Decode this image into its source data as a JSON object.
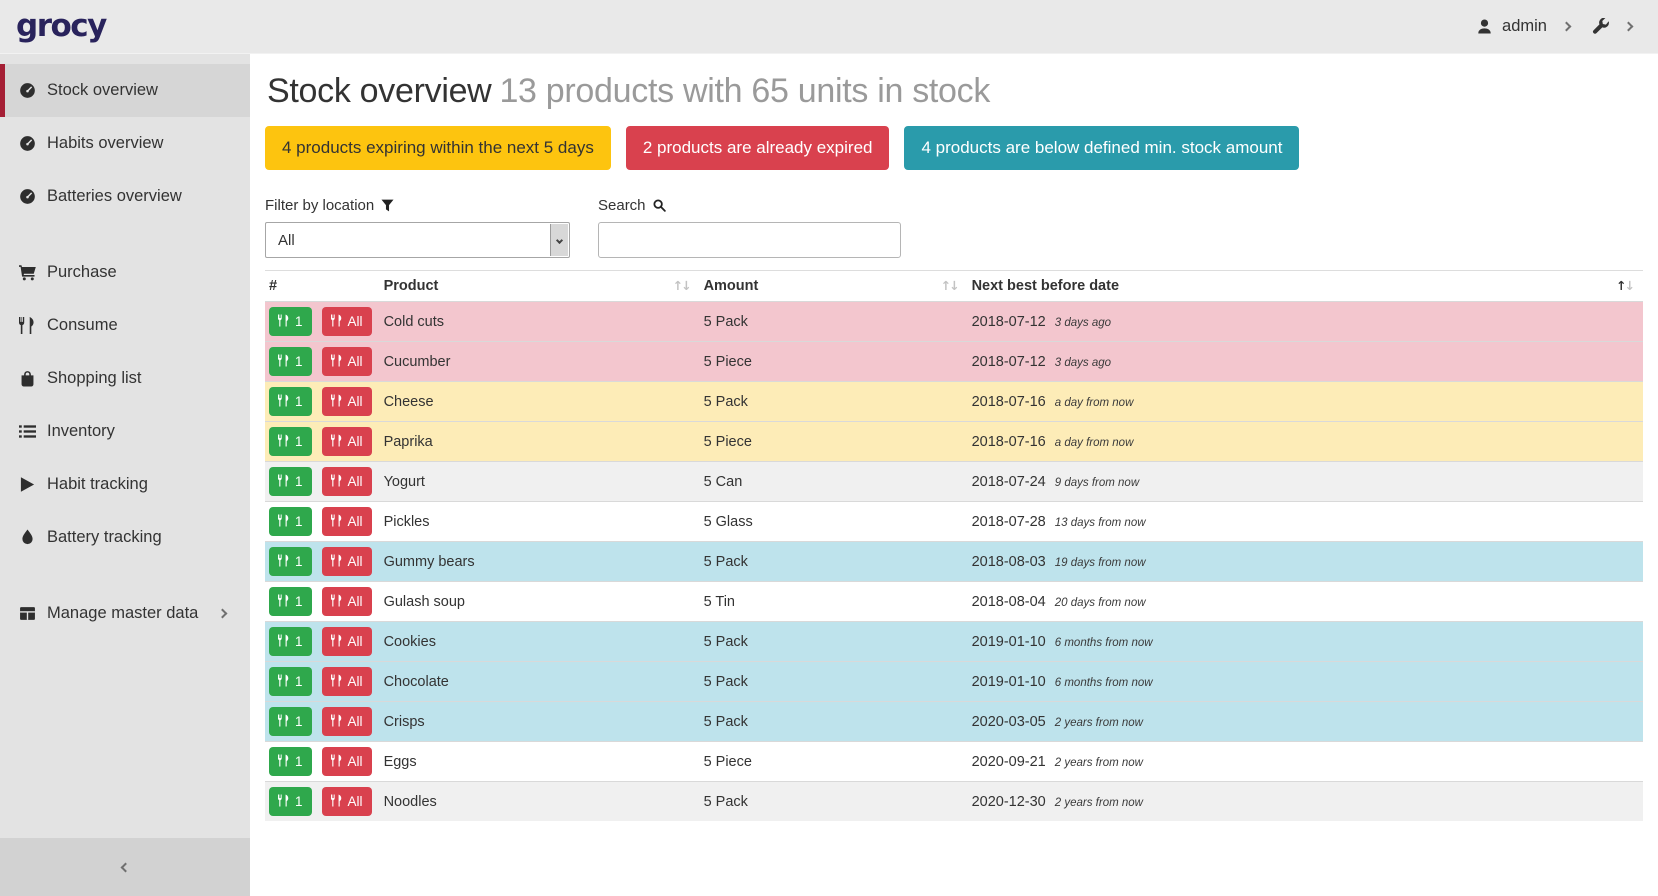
{
  "app": {
    "logo": "grocy"
  },
  "topbar": {
    "user_label": "admin"
  },
  "sidebar": {
    "groups": [
      {
        "items": [
          {
            "label": "Stock overview",
            "icon": "tachometer-icon",
            "active": true
          },
          {
            "label": "Habits overview",
            "icon": "tachometer-icon"
          },
          {
            "label": "Batteries overview",
            "icon": "tachometer-icon"
          }
        ]
      },
      {
        "items": [
          {
            "label": "Purchase",
            "icon": "cart-icon"
          },
          {
            "label": "Consume",
            "icon": "utensils-icon"
          },
          {
            "label": "Shopping list",
            "icon": "bag-icon"
          },
          {
            "label": "Inventory",
            "icon": "list-icon"
          },
          {
            "label": "Habit tracking",
            "icon": "play-icon"
          },
          {
            "label": "Battery tracking",
            "icon": "droplet-icon"
          }
        ]
      },
      {
        "items": [
          {
            "label": "Manage master data",
            "icon": "grid-icon",
            "expand": true
          }
        ]
      }
    ]
  },
  "header": {
    "title": "Stock overview",
    "subtitle": "13 products with 65 units in stock"
  },
  "badges": [
    {
      "label": "4 products expiring within the next 5 days",
      "bg": "#fdc40f",
      "fg": "#333333"
    },
    {
      "label": "2 products are already expired",
      "bg": "#d9414e",
      "fg": "#ffffff"
    },
    {
      "label": "4 products are below defined min. stock amount",
      "bg": "#2a9bab",
      "fg": "#ffffff"
    }
  ],
  "filters": {
    "location_label": "Filter by location",
    "location_value": "All",
    "search_label": "Search",
    "search_value": ""
  },
  "table": {
    "columns": [
      {
        "label": "#",
        "sort": "none"
      },
      {
        "label": "Product",
        "sort": "both"
      },
      {
        "label": "Amount",
        "sort": "both"
      },
      {
        "label": "Next best before date",
        "sort": "asc"
      }
    ],
    "consume_one_label": "1",
    "consume_all_label": "All",
    "status_colors": {
      "expired": "#f3c6ce",
      "expiring": "#fdecb7",
      "below-min": "#bee3ec"
    },
    "stripe_color": "#f0f0f0",
    "rows": [
      {
        "product": "Cold cuts",
        "amount": "5 Pack",
        "date": "2018-07-12",
        "ago": "3 days ago",
        "status": "expired"
      },
      {
        "product": "Cucumber",
        "amount": "5 Piece",
        "date": "2018-07-12",
        "ago": "3 days ago",
        "status": "expired"
      },
      {
        "product": "Cheese",
        "amount": "5 Pack",
        "date": "2018-07-16",
        "ago": "a day from now",
        "status": "expiring"
      },
      {
        "product": "Paprika",
        "amount": "5 Piece",
        "date": "2018-07-16",
        "ago": "a day from now",
        "status": "expiring"
      },
      {
        "product": "Yogurt",
        "amount": "5 Can",
        "date": "2018-07-24",
        "ago": "9 days from now",
        "status": ""
      },
      {
        "product": "Pickles",
        "amount": "5 Glass",
        "date": "2018-07-28",
        "ago": "13 days from now",
        "status": ""
      },
      {
        "product": "Gummy bears",
        "amount": "5 Pack",
        "date": "2018-08-03",
        "ago": "19 days from now",
        "status": "below-min"
      },
      {
        "product": "Gulash soup",
        "amount": "5 Tin",
        "date": "2018-08-04",
        "ago": "20 days from now",
        "status": ""
      },
      {
        "product": "Cookies",
        "amount": "5 Pack",
        "date": "2019-01-10",
        "ago": "6 months from now",
        "status": "below-min"
      },
      {
        "product": "Chocolate",
        "amount": "5 Pack",
        "date": "2019-01-10",
        "ago": "6 months from now",
        "status": "below-min"
      },
      {
        "product": "Crisps",
        "amount": "5 Pack",
        "date": "2020-03-05",
        "ago": "2 years from now",
        "status": "below-min"
      },
      {
        "product": "Eggs",
        "amount": "5 Piece",
        "date": "2020-09-21",
        "ago": "2 years from now",
        "status": ""
      },
      {
        "product": "Noodles",
        "amount": "5 Pack",
        "date": "2020-12-30",
        "ago": "2 years from now",
        "status": ""
      }
    ]
  },
  "button_colors": {
    "consume_one": "#2fa84c",
    "consume_all": "#d9414e"
  }
}
